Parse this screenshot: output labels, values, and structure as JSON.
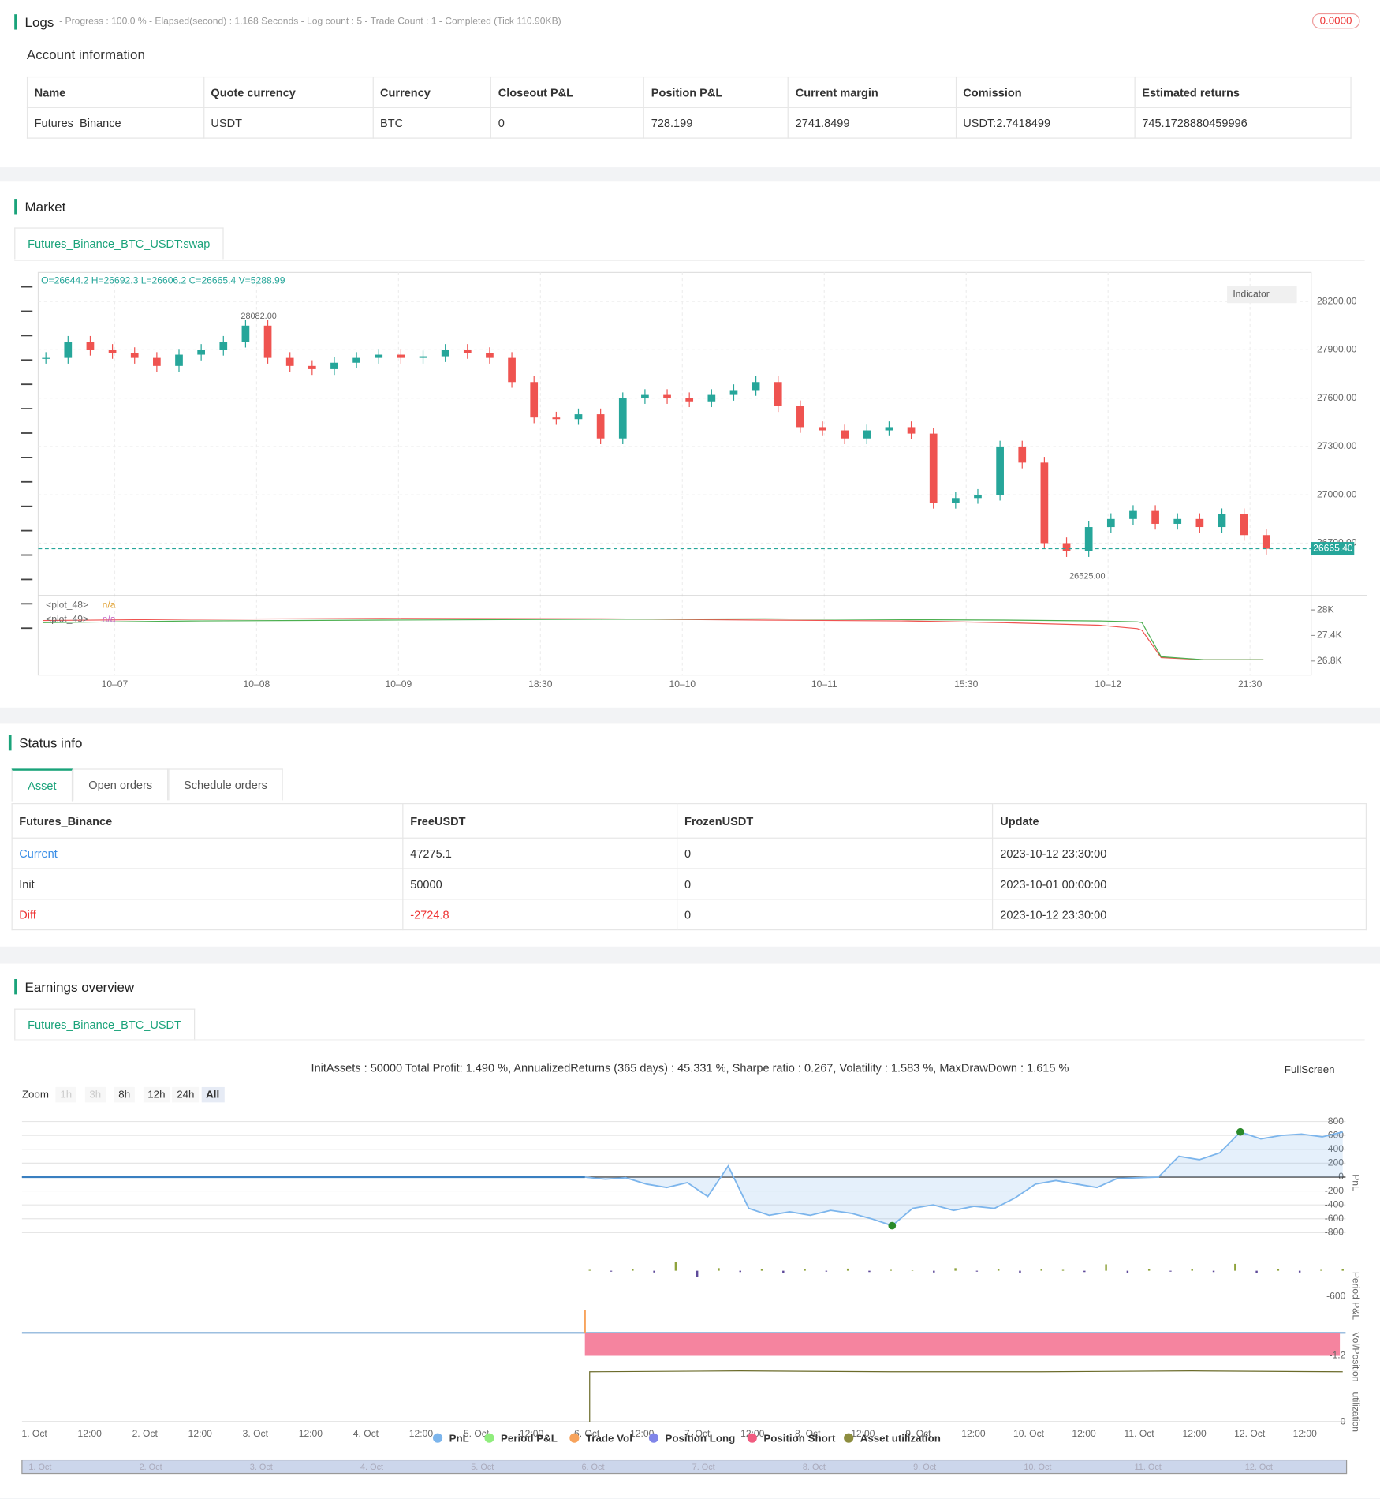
{
  "logs": {
    "title": "Logs",
    "summary": "- Progress : 100.0 % - Elapsed(second) : 1.168 Seconds - Log count : 5 - Trade Count : 1 - Completed (Tick 110.90KB)",
    "badge": "0.0000"
  },
  "account": {
    "title": "Account information",
    "headers": [
      "Name",
      "Quote currency",
      "Currency",
      "Closeout P&L",
      "Position P&L",
      "Current margin",
      "Comission",
      "Estimated returns"
    ],
    "rows": [
      [
        "Futures_Binance",
        "USDT",
        "BTC",
        "0",
        "728.199",
        "2741.8499",
        "USDT:2.7418499",
        "745.1728880459996"
      ]
    ]
  },
  "market": {
    "title": "Market",
    "tab": "Futures_Binance_BTC_USDT:swap",
    "ohlc": "O=26644.2 H=26692.3 L=26606.2 C=26665.4 V=5288.99",
    "indicator": "Indicator",
    "high_label": "28082.00",
    "low_label": "26525.00",
    "price": {
      "ylim": [
        26380,
        28380
      ],
      "yticks": [
        {
          "value": 28200,
          "label": "28200.00"
        },
        {
          "value": 27900,
          "label": "27900.00"
        },
        {
          "value": 27600,
          "label": "27600.00"
        },
        {
          "value": 27300,
          "label": "27300.00"
        },
        {
          "value": 27000,
          "label": "27000.00"
        },
        {
          "value": 26700,
          "label": "26700.00"
        }
      ],
      "last": {
        "value": 26665.4,
        "label": "26665.40"
      },
      "closes": [
        27850,
        27950,
        27900,
        27880,
        27850,
        27800,
        27870,
        27900,
        27950,
        28050,
        27850,
        27800,
        27780,
        27820,
        27850,
        27870,
        27850,
        27860,
        27900,
        27880,
        27850,
        27700,
        27480,
        27470,
        27500,
        27350,
        27600,
        27620,
        27600,
        27580,
        27620,
        27650,
        27700,
        27550,
        27420,
        27400,
        27350,
        27400,
        27420,
        27380,
        26950,
        26980,
        27000,
        27300,
        27200,
        26700,
        26650,
        26800,
        26850,
        26900,
        26820,
        26850,
        26800,
        26880,
        26750,
        26665
      ]
    },
    "indicator_panel": {
      "ylim": [
        26470,
        28290
      ],
      "yticks": [
        {
          "value": 28000,
          "label": "28K"
        },
        {
          "value": 27400,
          "label": "27.4K"
        },
        {
          "value": 26800,
          "label": "26.8K"
        }
      ],
      "series": [
        {
          "name": "<plot_48>",
          "status": "n/a",
          "color": "#ef5350",
          "values": [
            27750,
            27780,
            27800,
            27790,
            27760,
            27740,
            27700,
            27640,
            27560,
            27520,
            26880,
            26830,
            26830
          ]
        },
        {
          "name": "<plot_49>",
          "status": "n/a",
          "color": "#4caf50",
          "values": [
            27700,
            27740,
            27760,
            27780,
            27790,
            27770,
            27760,
            27740,
            27720,
            27700,
            26900,
            26830,
            26830
          ]
        }
      ]
    },
    "xlabels": [
      "10–07",
      "10–08",
      "10–09",
      "18:30",
      "10–10",
      "10–11",
      "15:30",
      "10–12",
      "21:30"
    ]
  },
  "status": {
    "title": "Status info",
    "tabs": [
      "Asset",
      "Open orders",
      "Schedule orders"
    ],
    "headers": [
      "Futures_Binance",
      "FreeUSDT",
      "FrozenUSDT",
      "Update"
    ],
    "rows": [
      [
        "Current",
        "47275.1",
        "0",
        "2023-10-12 23:30:00"
      ],
      [
        "Init",
        "50000",
        "0",
        "2023-10-01 00:00:00"
      ],
      [
        "Diff",
        "-2724.8",
        "0",
        "2023-10-12 23:30:00"
      ]
    ]
  },
  "earnings": {
    "title": "Earnings overview",
    "tab": "Futures_Binance_BTC_USDT",
    "stats": "InitAssets : 50000 Total Profit: 1.490 %, AnnualizedReturns (365 days) : 45.331 %, Sharpe ratio : 0.267, Volatility : 1.583 %, MaxDrawDown : 1.615 %",
    "fullscreen": "FullScreen",
    "zoom_label": "Zoom",
    "zoom": [
      "1h",
      "3h",
      "8h",
      "12h",
      "24h",
      "All"
    ],
    "pnl": {
      "axis_title": "PnL",
      "ylim": [
        -880,
        910
      ],
      "yticks": [
        800,
        600,
        400,
        200,
        0,
        -200,
        -400,
        -600,
        -800
      ],
      "values": [
        0,
        -30,
        -10,
        -100,
        -150,
        -80,
        -280,
        160,
        -450,
        -550,
        -500,
        -550,
        -480,
        -520,
        -600,
        -700,
        -450,
        -400,
        -480,
        -420,
        -450,
        -300,
        -100,
        -50,
        -100,
        -150,
        -20,
        -10,
        0,
        300,
        250,
        350,
        650,
        550,
        600,
        620,
        580,
        650
      ]
    },
    "period": {
      "axis_title": "Period P&L",
      "ylim": [
        -600,
        600
      ],
      "tick": {
        "value": -600,
        "label": "-600"
      },
      "values": [
        20,
        -20,
        30,
        -40,
        200,
        -150,
        60,
        -30,
        40,
        -60,
        30,
        -20,
        50,
        -30,
        20,
        10,
        -40,
        60,
        -20,
        30,
        -50,
        40,
        20,
        -30,
        150,
        -60,
        30,
        -20,
        40,
        -30,
        160,
        -50,
        30,
        -40,
        20,
        30
      ]
    },
    "volpos": {
      "axis_title": "Vol/Position",
      "ylim": [
        -1.2,
        1.2
      ],
      "tick": -1.2,
      "trade_vol": 1.2,
      "position_short": -1.2
    },
    "util": {
      "axis_title": "utilization",
      "ylim": [
        0,
        6
      ],
      "tick": 0,
      "values": [
        5.5,
        5.6,
        5.5,
        5.5,
        5.6,
        5.5
      ]
    },
    "xlabels": [
      "1. Oct",
      "12:00",
      "2. Oct",
      "12:00",
      "3. Oct",
      "12:00",
      "4. Oct",
      "12:00",
      "5. Oct",
      "12:00",
      "6. Oct",
      "12:00",
      "7. Oct",
      "12:00",
      "8. Oct",
      "12:00",
      "9. Oct",
      "12:00",
      "10. Oct",
      "12:00",
      "11. Oct",
      "12:00",
      "12. Oct",
      "12:00"
    ],
    "legend": [
      {
        "name": "PnL",
        "color": "#7cb5ec"
      },
      {
        "name": "Period P&L",
        "color": "#90ed7d"
      },
      {
        "name": "Trade Vol",
        "color": "#f7a35c"
      },
      {
        "name": "Position Long",
        "color": "#8085e9"
      },
      {
        "name": "Position Short",
        "color": "#f15c80"
      },
      {
        "name": "Asset utilization",
        "color": "#8d8d3f"
      }
    ],
    "navigator": [
      "1. Oct",
      "2. Oct",
      "3. Oct",
      "4. Oct",
      "5. Oct",
      "6. Oct",
      "7. Oct",
      "8. Oct",
      "9. Oct",
      "10. Oct",
      "11. Oct",
      "12. Oct"
    ]
  }
}
